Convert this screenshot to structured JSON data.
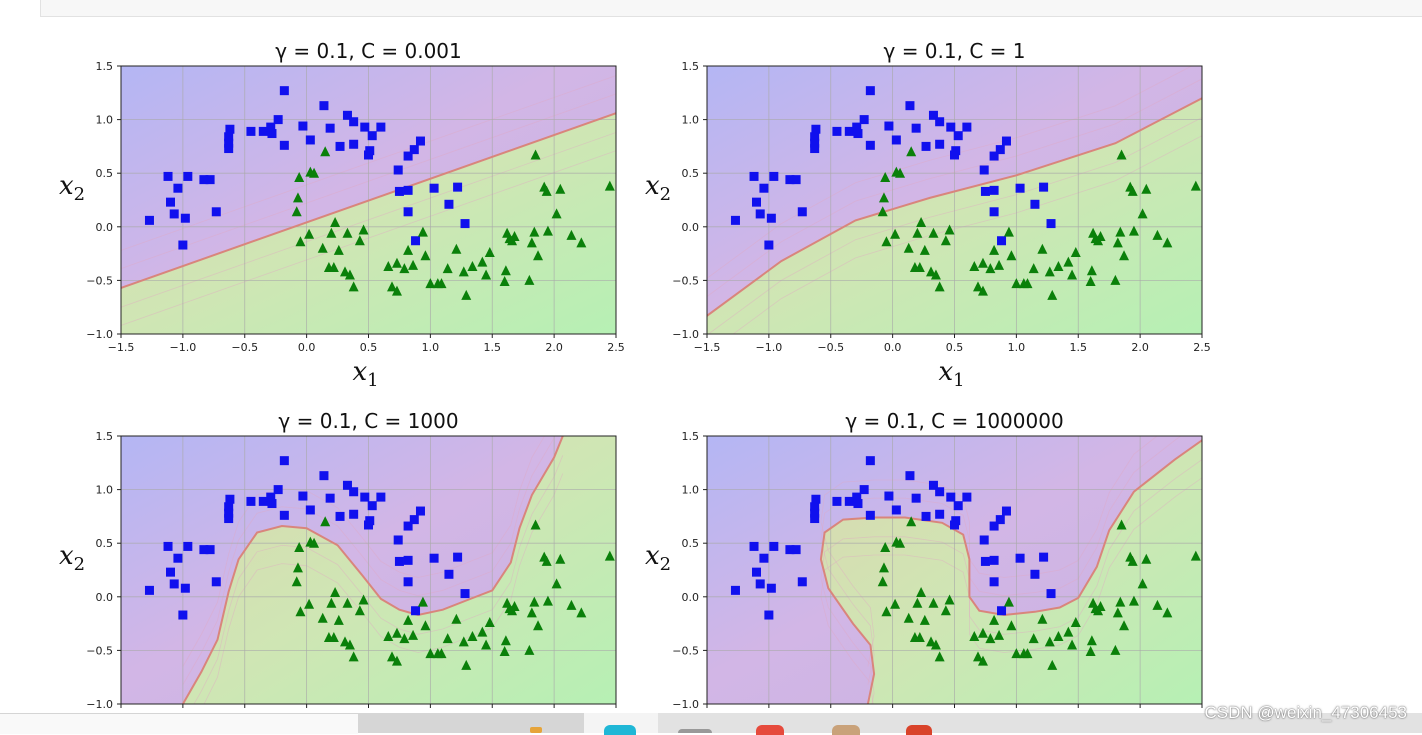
{
  "watermark": "CSDN @weixin_47306453",
  "colors": {
    "blue": "#1010ee",
    "green": "#0a800a"
  },
  "points": {
    "squares": [
      [
        -1.27,
        0.06
      ],
      [
        -1.12,
        0.47
      ],
      [
        -1.1,
        0.23
      ],
      [
        -1.07,
        0.12
      ],
      [
        -1.04,
        0.36
      ],
      [
        -1.0,
        -0.17
      ],
      [
        -0.98,
        0.08
      ],
      [
        -0.96,
        0.47
      ],
      [
        -0.83,
        0.44
      ],
      [
        -0.78,
        0.44
      ],
      [
        -0.73,
        0.14
      ],
      [
        -0.63,
        0.84
      ],
      [
        -0.63,
        0.73
      ],
      [
        -0.62,
        0.91
      ],
      [
        -0.63,
        0.78
      ],
      [
        -0.45,
        0.89
      ],
      [
        -0.35,
        0.89
      ],
      [
        -0.29,
        0.93
      ],
      [
        -0.28,
        0.87
      ],
      [
        -0.23,
        1.0
      ],
      [
        -0.18,
        1.27
      ],
      [
        -0.18,
        0.76
      ],
      [
        -0.03,
        0.94
      ],
      [
        0.03,
        0.81
      ],
      [
        0.14,
        1.13
      ],
      [
        0.19,
        0.92
      ],
      [
        0.27,
        0.75
      ],
      [
        0.33,
        1.04
      ],
      [
        0.38,
        0.98
      ],
      [
        0.38,
        0.77
      ],
      [
        0.47,
        0.93
      ],
      [
        0.5,
        0.67
      ],
      [
        0.51,
        0.71
      ],
      [
        0.53,
        0.85
      ],
      [
        0.6,
        0.93
      ],
      [
        0.74,
        0.53
      ],
      [
        0.75,
        0.33
      ],
      [
        0.82,
        0.34
      ],
      [
        0.82,
        0.14
      ],
      [
        0.82,
        0.66
      ],
      [
        0.87,
        0.72
      ],
      [
        0.92,
        0.8
      ],
      [
        0.88,
        -0.13
      ],
      [
        1.03,
        0.36
      ],
      [
        1.15,
        0.21
      ],
      [
        1.22,
        0.37
      ],
      [
        1.28,
        0.03
      ]
    ],
    "triangles": [
      [
        -0.08,
        0.14
      ],
      [
        -0.07,
        0.27
      ],
      [
        -0.06,
        0.46
      ],
      [
        -0.05,
        -0.14
      ],
      [
        0.02,
        -0.07
      ],
      [
        0.03,
        0.51
      ],
      [
        0.06,
        0.5
      ],
      [
        0.13,
        -0.2
      ],
      [
        0.15,
        0.7
      ],
      [
        0.18,
        -0.38
      ],
      [
        0.2,
        -0.06
      ],
      [
        0.22,
        -0.38
      ],
      [
        0.23,
        0.04
      ],
      [
        0.26,
        -0.22
      ],
      [
        0.31,
        -0.42
      ],
      [
        0.33,
        -0.06
      ],
      [
        0.35,
        -0.45
      ],
      [
        0.38,
        -0.56
      ],
      [
        0.43,
        -0.13
      ],
      [
        0.46,
        -0.03
      ],
      [
        0.66,
        -0.37
      ],
      [
        0.69,
        -0.56
      ],
      [
        0.73,
        -0.34
      ],
      [
        0.73,
        -0.6
      ],
      [
        0.79,
        -0.39
      ],
      [
        0.82,
        -0.22
      ],
      [
        0.86,
        -0.36
      ],
      [
        0.94,
        -0.05
      ],
      [
        0.96,
        -0.27
      ],
      [
        1.0,
        -0.53
      ],
      [
        1.06,
        -0.53
      ],
      [
        1.09,
        -0.53
      ],
      [
        1.14,
        -0.39
      ],
      [
        1.21,
        -0.21
      ],
      [
        1.27,
        -0.42
      ],
      [
        1.29,
        -0.64
      ],
      [
        1.34,
        -0.37
      ],
      [
        1.42,
        -0.33
      ],
      [
        1.45,
        -0.45
      ],
      [
        1.48,
        -0.24
      ],
      [
        1.6,
        -0.51
      ],
      [
        1.61,
        -0.41
      ],
      [
        1.62,
        -0.06
      ],
      [
        1.64,
        -0.11
      ],
      [
        1.66,
        -0.13
      ],
      [
        1.68,
        -0.09
      ],
      [
        1.8,
        -0.5
      ],
      [
        1.82,
        -0.15
      ],
      [
        1.84,
        -0.05
      ],
      [
        1.85,
        0.67
      ],
      [
        1.87,
        -0.27
      ],
      [
        1.92,
        0.37
      ],
      [
        1.94,
        0.33
      ],
      [
        1.95,
        -0.04
      ],
      [
        2.02,
        0.12
      ],
      [
        2.05,
        0.35
      ],
      [
        2.14,
        -0.08
      ],
      [
        2.22,
        -0.15
      ],
      [
        2.45,
        0.38
      ]
    ]
  },
  "chart_data": [
    {
      "type": "scatter",
      "title": "γ = 0.1, C = 0.001",
      "xlabel": "x1",
      "ylabel": "x2",
      "xlim": [
        -1.5,
        2.5
      ],
      "ylim": [
        -1.0,
        1.5
      ],
      "xticks": [
        "−1.5",
        "−1.0",
        "−0.5",
        "0.0",
        "0.5",
        "1.0",
        "1.5",
        "2.0",
        "2.5"
      ],
      "yticks": [
        "−1.0",
        "−0.5",
        "0.0",
        "0.5",
        "1.0",
        "1.5"
      ],
      "grid": true,
      "boundary": [
        [
          -1.5,
          -0.57
        ],
        [
          2.5,
          1.06
        ]
      ]
    },
    {
      "type": "scatter",
      "title": "γ = 0.1, C = 1",
      "xlabel": "x1",
      "ylabel": "x2",
      "xlim": [
        -1.5,
        2.5
      ],
      "ylim": [
        -1.0,
        1.5
      ],
      "xticks": [
        "−1.5",
        "−1.0",
        "−0.5",
        "0.0",
        "0.5",
        "1.0",
        "1.5",
        "2.0",
        "2.5"
      ],
      "yticks": [
        "−1.0",
        "−0.5",
        "0.0",
        "0.5",
        "1.0",
        "1.5"
      ],
      "grid": true,
      "boundary": [
        [
          -1.5,
          -0.83
        ],
        [
          -0.9,
          -0.32
        ],
        [
          -0.3,
          0.06
        ],
        [
          0.3,
          0.27
        ],
        [
          1.0,
          0.48
        ],
        [
          1.8,
          0.78
        ],
        [
          2.5,
          1.2
        ]
      ]
    },
    {
      "type": "scatter",
      "title": "γ = 0.1, C = 1000",
      "xlabel": "",
      "ylabel": "x2",
      "xlim": [
        -1.5,
        2.5
      ],
      "ylim": [
        -1.0,
        1.5
      ],
      "xticks": [],
      "yticks": [
        "−1.0",
        "−0.5",
        "0.0",
        "0.5",
        "1.0",
        "1.5"
      ],
      "grid": true,
      "boundary": [
        [
          -1.0,
          -1.0
        ],
        [
          -0.85,
          -0.7
        ],
        [
          -0.72,
          -0.4
        ],
        [
          -0.63,
          0.05
        ],
        [
          -0.55,
          0.35
        ],
        [
          -0.4,
          0.6
        ],
        [
          -0.2,
          0.66
        ],
        [
          0.0,
          0.64
        ],
        [
          0.25,
          0.48
        ],
        [
          0.45,
          0.2
        ],
        [
          0.6,
          -0.02
        ],
        [
          0.75,
          -0.12
        ],
        [
          0.9,
          -0.17
        ],
        [
          1.1,
          -0.12
        ],
        [
          1.3,
          -0.03
        ],
        [
          1.5,
          0.06
        ],
        [
          1.65,
          0.32
        ],
        [
          1.72,
          0.64
        ],
        [
          1.82,
          0.95
        ],
        [
          2.0,
          1.3
        ],
        [
          2.07,
          1.5
        ]
      ]
    },
    {
      "type": "scatter",
      "title": "γ = 0.1, C = 1000000",
      "xlabel": "",
      "ylabel": "x2",
      "xlim": [
        -1.5,
        2.5
      ],
      "ylim": [
        -1.0,
        1.5
      ],
      "xticks": [],
      "yticks": [
        "−1.0",
        "−0.5",
        "0.0",
        "0.5",
        "1.0",
        "1.5"
      ],
      "grid": true,
      "boundary": [
        [
          -0.2,
          -1.0
        ],
        [
          -0.15,
          -0.72
        ],
        [
          -0.18,
          -0.45
        ],
        [
          -0.32,
          -0.25
        ],
        [
          -0.52,
          0.08
        ],
        [
          -0.58,
          0.35
        ],
        [
          -0.55,
          0.6
        ],
        [
          -0.4,
          0.72
        ],
        [
          -0.15,
          0.74
        ],
        [
          0.1,
          0.74
        ],
        [
          0.4,
          0.69
        ],
        [
          0.57,
          0.58
        ],
        [
          0.62,
          0.35
        ],
        [
          0.62,
          0.0
        ],
        [
          0.7,
          -0.13
        ],
        [
          0.9,
          -0.17
        ],
        [
          1.15,
          -0.14
        ],
        [
          1.35,
          -0.1
        ],
        [
          1.5,
          -0.01
        ],
        [
          1.65,
          0.28
        ],
        [
          1.75,
          0.62
        ],
        [
          1.95,
          0.98
        ],
        [
          2.28,
          1.28
        ],
        [
          2.5,
          1.46
        ]
      ]
    }
  ]
}
